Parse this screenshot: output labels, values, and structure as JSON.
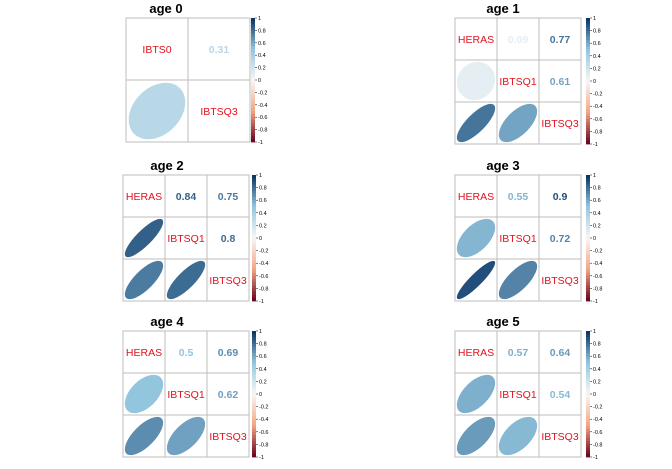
{
  "chart_data": [
    {
      "type": "heatmap",
      "title": "age 0",
      "variables": [
        "IBTS0",
        "IBTSQ3"
      ],
      "correlations": [
        {
          "pair": [
            "IBTS0",
            "IBTSQ3"
          ],
          "value": 0.31
        }
      ],
      "scale": [
        -1,
        1
      ]
    },
    {
      "type": "heatmap",
      "title": "age 1",
      "variables": [
        "HERAS",
        "IBTSQ1",
        "IBTSQ3"
      ],
      "correlations": [
        {
          "pair": [
            "HERAS",
            "IBTSQ1"
          ],
          "value": 0.09
        },
        {
          "pair": [
            "HERAS",
            "IBTSQ3"
          ],
          "value": 0.77
        },
        {
          "pair": [
            "IBTSQ1",
            "IBTSQ3"
          ],
          "value": 0.61
        }
      ],
      "scale": [
        -1,
        1
      ]
    },
    {
      "type": "heatmap",
      "title": "age 2",
      "variables": [
        "HERAS",
        "IBTSQ1",
        "IBTSQ3"
      ],
      "correlations": [
        {
          "pair": [
            "HERAS",
            "IBTSQ1"
          ],
          "value": 0.84
        },
        {
          "pair": [
            "HERAS",
            "IBTSQ3"
          ],
          "value": 0.75
        },
        {
          "pair": [
            "IBTSQ1",
            "IBTSQ3"
          ],
          "value": 0.8
        }
      ],
      "scale": [
        -1,
        1
      ]
    },
    {
      "type": "heatmap",
      "title": "age 3",
      "variables": [
        "HERAS",
        "IBTSQ1",
        "IBTSQ3"
      ],
      "correlations": [
        {
          "pair": [
            "HERAS",
            "IBTSQ1"
          ],
          "value": 0.55
        },
        {
          "pair": [
            "HERAS",
            "IBTSQ3"
          ],
          "value": 0.9
        },
        {
          "pair": [
            "IBTSQ1",
            "IBTSQ3"
          ],
          "value": 0.72
        }
      ],
      "scale": [
        -1,
        1
      ]
    },
    {
      "type": "heatmap",
      "title": "age 4",
      "variables": [
        "HERAS",
        "IBTSQ1",
        "IBTSQ3"
      ],
      "correlations": [
        {
          "pair": [
            "HERAS",
            "IBTSQ1"
          ],
          "value": 0.5
        },
        {
          "pair": [
            "HERAS",
            "IBTSQ3"
          ],
          "value": 0.69
        },
        {
          "pair": [
            "IBTSQ1",
            "IBTSQ3"
          ],
          "value": 0.62
        }
      ],
      "scale": [
        -1,
        1
      ]
    },
    {
      "type": "heatmap",
      "title": "age 5",
      "variables": [
        "HERAS",
        "IBTSQ1",
        "IBTSQ3"
      ],
      "correlations": [
        {
          "pair": [
            "HERAS",
            "IBTSQ1"
          ],
          "value": 0.57
        },
        {
          "pair": [
            "HERAS",
            "IBTSQ3"
          ],
          "value": 0.64
        },
        {
          "pair": [
            "IBTSQ1",
            "IBTSQ3"
          ],
          "value": 0.54
        }
      ],
      "scale": [
        -1,
        1
      ]
    }
  ],
  "colorbar": {
    "tick_labels": [
      "1",
      "0.8",
      "0.6",
      "0.4",
      "0.2",
      "0",
      "-0.2",
      "-0.4",
      "-0.6",
      "-0.8",
      "-1"
    ]
  },
  "colors": {
    "negative_end": "#67001f",
    "negative_mid": "#f4a582",
    "neutral": "#f7f7f7",
    "positive_mid": "#92c5de",
    "positive_end": "#053061",
    "variable_label": "#e3111d",
    "grid": "#bebebe"
  }
}
